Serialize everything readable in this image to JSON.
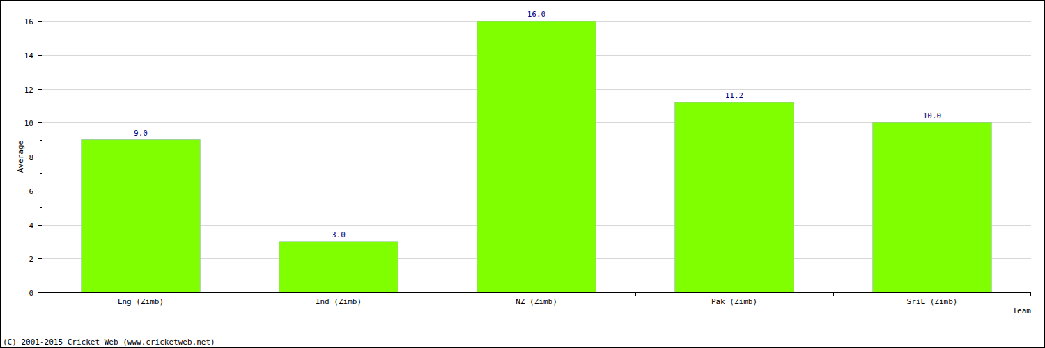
{
  "chart_data": {
    "type": "bar",
    "x_label": "Team",
    "y_label": "Average",
    "categories": [
      "Eng (Zimb)",
      "Ind (Zimb)",
      "NZ (Zimb)",
      "Pak (Zimb)",
      "SriL (Zimb)"
    ],
    "values": [
      9,
      3,
      16,
      11.2,
      10
    ],
    "value_labels": [
      "9.0",
      "3.0",
      "16.0",
      "11.2",
      "10.0"
    ],
    "color": "#80ff00",
    "ylim": [
      0,
      16
    ],
    "yticks": [
      0,
      2,
      4,
      6,
      8,
      10,
      12,
      14,
      16
    ],
    "grid": true,
    "data_labels": true,
    "annotations": [
      "(C) 2001-2015 Cricket Web (www.cricketweb.net)"
    ]
  }
}
